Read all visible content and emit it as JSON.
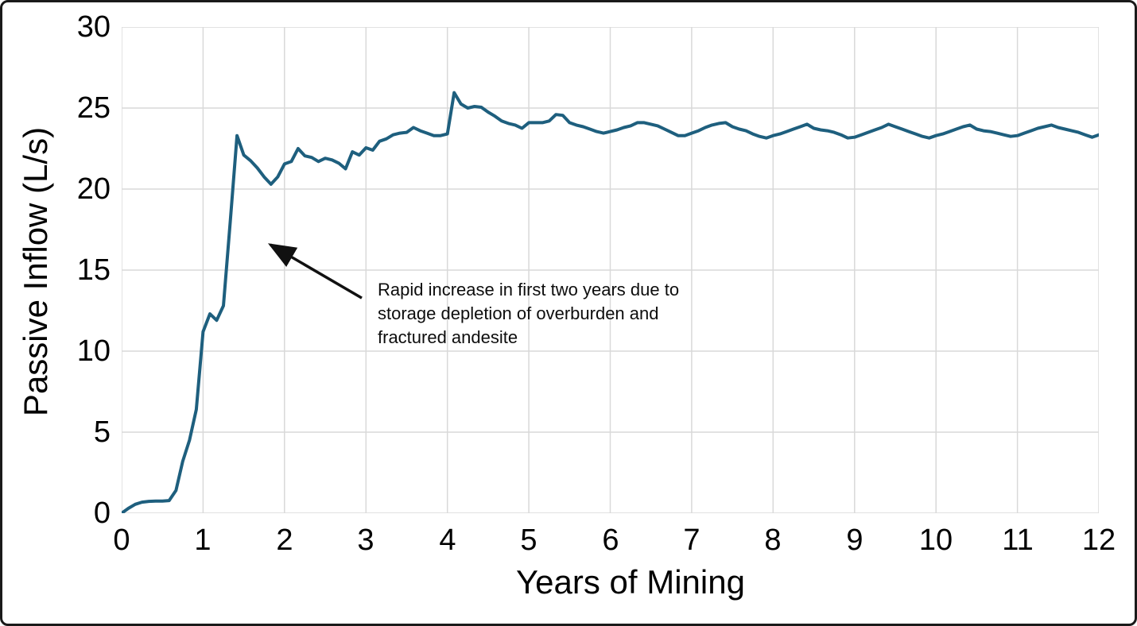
{
  "figure": {
    "background": "#ffffff",
    "border_color": "#1a1a1a"
  },
  "chart_data": {
    "type": "line",
    "title": "",
    "xlabel": "Years of Mining",
    "ylabel": "Passive Inflow (L/s)",
    "xlim": [
      0,
      12
    ],
    "ylim": [
      0,
      30
    ],
    "x_ticks": [
      0,
      1,
      2,
      3,
      4,
      5,
      6,
      7,
      8,
      9,
      10,
      11,
      12
    ],
    "y_ticks": [
      0,
      5,
      10,
      15,
      20,
      25,
      30
    ],
    "grid": true,
    "legend": false,
    "series": [
      {
        "name": "Passive Inflow",
        "color": "#1e5f7e",
        "x_start": 0,
        "points_per_year": 12,
        "values": [
          0,
          0.3,
          0.55,
          0.68,
          0.73,
          0.75,
          0.75,
          0.78,
          1.4,
          3.2,
          4.5,
          6.4,
          11.2,
          12.3,
          11.9,
          12.8,
          18.0,
          23.3,
          22.1,
          21.75,
          21.3,
          20.75,
          20.3,
          20.75,
          21.55,
          21.7,
          22.5,
          22.05,
          21.95,
          21.7,
          21.9,
          21.8,
          21.6,
          21.25,
          22.3,
          22.1,
          22.55,
          22.4,
          22.95,
          23.1,
          23.35,
          23.45,
          23.5,
          23.8,
          23.6,
          23.45,
          23.3,
          23.3,
          23.4,
          25.95,
          25.25,
          25.0,
          25.1,
          25.05,
          24.75,
          24.5,
          24.2,
          24.05,
          23.95,
          23.75,
          24.1,
          24.1,
          24.1,
          24.2,
          24.6,
          24.55,
          24.1,
          23.95,
          23.85,
          23.7,
          23.55,
          23.45,
          23.55,
          23.65,
          23.8,
          23.9,
          24.1,
          24.1,
          24.0,
          23.9,
          23.7,
          23.5,
          23.3,
          23.3,
          23.45,
          23.6,
          23.8,
          23.95,
          24.05,
          24.1,
          23.85,
          23.7,
          23.6,
          23.4,
          23.25,
          23.15,
          23.3,
          23.4,
          23.55,
          23.7,
          23.85,
          24.0,
          23.75,
          23.65,
          23.6,
          23.5,
          23.35,
          23.15,
          23.2,
          23.35,
          23.5,
          23.65,
          23.8,
          24.0,
          23.85,
          23.7,
          23.55,
          23.4,
          23.25,
          23.15,
          23.3,
          23.4,
          23.55,
          23.7,
          23.85,
          23.95,
          23.7,
          23.6,
          23.55,
          23.45,
          23.35,
          23.25,
          23.3,
          23.45,
          23.6,
          23.75,
          23.85,
          23.95,
          23.8,
          23.7,
          23.6,
          23.5,
          23.35,
          23.2,
          23.35
        ]
      }
    ],
    "annotation": {
      "text": "Rapid increase in first two years due to\nstorage depletion of overburden and\nfractured andesite",
      "text_anchor_data_xy": [
        3.145,
        14.51
      ],
      "arrow_from_data_xy": [
        2.949,
        13.28
      ],
      "arrow_to_data_xy": [
        1.826,
        16.57
      ]
    }
  },
  "colors": {
    "line": "#1e5f7e",
    "grid": "#d9d9d9",
    "text": "#000000",
    "arrow": "#111111"
  }
}
